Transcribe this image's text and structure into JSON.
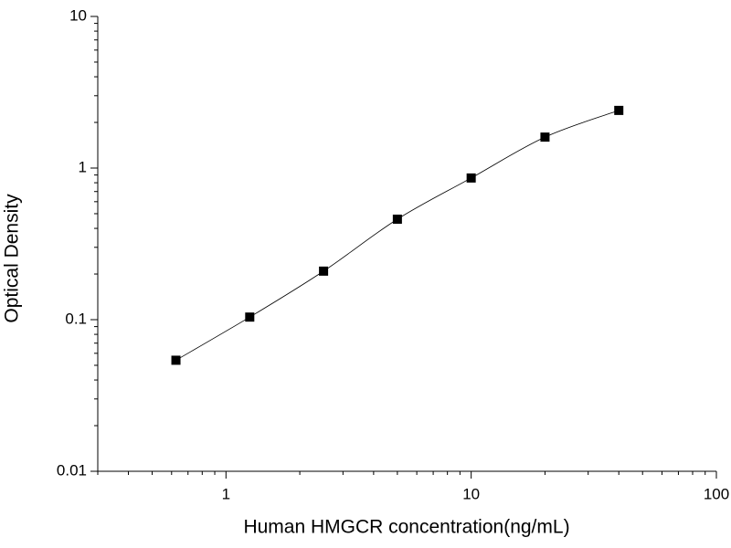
{
  "chart_data": {
    "type": "scatter",
    "x_label": "Human HMGCR concentration(ng/mL)",
    "y_label": "Optical Density",
    "x": [
      0.625,
      1.25,
      2.5,
      5,
      10,
      20,
      40
    ],
    "values": [
      0.054,
      0.104,
      0.209,
      0.46,
      0.86,
      1.6,
      2.4
    ],
    "color": "#000000",
    "xlim": [
      0.3,
      100
    ],
    "xticks": [
      1,
      10,
      100
    ],
    "ylim": [
      0.01,
      10
    ],
    "yticks": [
      0.01,
      0.1,
      1,
      10
    ],
    "x_log": true,
    "y_log": true,
    "fit_line": true
  }
}
